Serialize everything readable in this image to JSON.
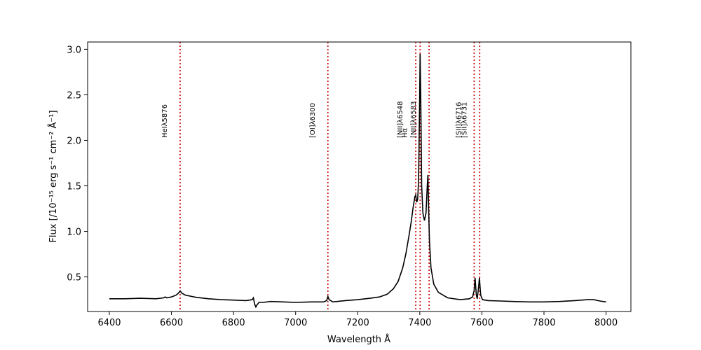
{
  "chart_data": {
    "type": "line",
    "title": "",
    "xlabel": "Wavelength Å",
    "ylabel": "Flux [/10⁻¹⁵ erg s⁻¹ cm⁻² Å⁻¹]",
    "xlim": [
      6330,
      8080
    ],
    "ylim": [
      0.12,
      3.08
    ],
    "xticks": [
      "6400",
      "6600",
      "6800",
      "7000",
      "7200",
      "7400",
      "7600",
      "7800",
      "8000"
    ],
    "yticks": [
      "0.5",
      "1.0",
      "1.5",
      "2.0",
      "2.5",
      "3.0"
    ],
    "grid": false,
    "series_color": "#000000",
    "line_color": "#cc0000",
    "series": [
      {
        "x": [
          6400,
          6450,
          6500,
          6550,
          6575,
          6580,
          6585,
          6600,
          6615,
          6622,
          6628,
          6634,
          6645,
          6680,
          6720,
          6760,
          6800,
          6840,
          6860,
          6864,
          6868,
          6872,
          6876,
          6882,
          6895,
          6920,
          6960,
          7000,
          7050,
          7090,
          7100,
          7104,
          7108,
          7120,
          7160,
          7200,
          7240,
          7270,
          7295,
          7315,
          7330,
          7345,
          7355,
          7365,
          7372,
          7378,
          7384,
          7387,
          7390,
          7393,
          7396,
          7399,
          7401,
          7403,
          7406,
          7410,
          7415,
          7420,
          7424,
          7426,
          7428,
          7431,
          7436,
          7445,
          7460,
          7490,
          7530,
          7560,
          7570,
          7575,
          7578,
          7582,
          7585,
          7589,
          7592,
          7596,
          7602,
          7620,
          7660,
          7700,
          7750,
          7800,
          7850,
          7900,
          7940,
          7960,
          7980,
          8000
        ],
        "y": [
          0.26,
          0.26,
          0.265,
          0.26,
          0.27,
          0.28,
          0.27,
          0.28,
          0.3,
          0.32,
          0.345,
          0.32,
          0.3,
          0.275,
          0.26,
          0.25,
          0.245,
          0.24,
          0.25,
          0.27,
          0.2,
          0.17,
          0.195,
          0.22,
          0.22,
          0.23,
          0.225,
          0.22,
          0.225,
          0.225,
          0.24,
          0.285,
          0.25,
          0.225,
          0.24,
          0.25,
          0.265,
          0.28,
          0.31,
          0.37,
          0.45,
          0.6,
          0.75,
          0.95,
          1.1,
          1.25,
          1.38,
          1.4,
          1.32,
          1.35,
          1.55,
          2.3,
          2.95,
          2.5,
          1.5,
          1.2,
          1.12,
          1.2,
          1.5,
          1.62,
          1.3,
          0.9,
          0.6,
          0.42,
          0.33,
          0.27,
          0.25,
          0.26,
          0.28,
          0.35,
          0.49,
          0.3,
          0.26,
          0.38,
          0.49,
          0.3,
          0.25,
          0.24,
          0.235,
          0.23,
          0.225,
          0.225,
          0.23,
          0.24,
          0.25,
          0.25,
          0.235,
          0.225
        ]
      }
    ],
    "lines": [
      {
        "x": 6628,
        "label": "HeIλ5876"
      },
      {
        "x": 7104,
        "label": "[OI]λ6300"
      },
      {
        "x": 7387,
        "label": "[NII]λ6548"
      },
      {
        "x": 7401,
        "label": "Hα"
      },
      {
        "x": 7430,
        "label": "[NII]λ6583"
      },
      {
        "x": 7575,
        "label": "[SII]λ6716"
      },
      {
        "x": 7593,
        "label": "[SII]λ6731"
      }
    ]
  }
}
